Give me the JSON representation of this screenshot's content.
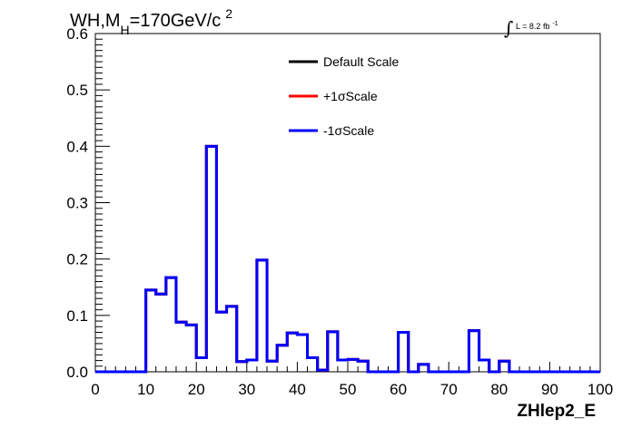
{
  "chart_data": {
    "type": "histogram",
    "title_parts": {
      "main": "WH,M",
      "sub": "H",
      "rest": "=170GeV/c",
      "sup": "2"
    },
    "lumi": {
      "symbol": "∫",
      "text": "L = 8.2 fb",
      "sup": "-1"
    },
    "xlabel": "ZHlep2_E",
    "ylabel": "",
    "xlim": [
      0,
      100
    ],
    "ylim": [
      0,
      0.6
    ],
    "x_ticks": [
      "0",
      "10",
      "20",
      "30",
      "40",
      "50",
      "60",
      "70",
      "80",
      "90",
      "100"
    ],
    "y_ticks": [
      "0.0",
      "0.1",
      "0.2",
      "0.3",
      "0.4",
      "0.5",
      "0.6"
    ],
    "bin_edges_start": 0,
    "bin_width": 2,
    "legend_position": "top-center",
    "series": [
      {
        "name": "Default Scale",
        "color": "#000000",
        "values": [
          0,
          0,
          0,
          0,
          0,
          0.145,
          0.138,
          0.167,
          0.088,
          0.083,
          0.025,
          0.4,
          0.106,
          0.116,
          0.018,
          0.021,
          0.198,
          0.019,
          0.047,
          0.069,
          0.066,
          0.025,
          0.003,
          0.071,
          0.021,
          0.022,
          0.019,
          0,
          0,
          0,
          0.07,
          0,
          0.013,
          0,
          0,
          0,
          0,
          0.073,
          0.021,
          0,
          0.019,
          0,
          0,
          0,
          0,
          0,
          0,
          0,
          0,
          0
        ]
      },
      {
        "name": "+1σScale",
        "color": "#ff0000",
        "values": [
          0,
          0,
          0,
          0,
          0,
          0.145,
          0.138,
          0.167,
          0.088,
          0.083,
          0.025,
          0.4,
          0.106,
          0.116,
          0.018,
          0.021,
          0.198,
          0.019,
          0.047,
          0.069,
          0.066,
          0.025,
          0.003,
          0.071,
          0.021,
          0.022,
          0.019,
          0,
          0,
          0,
          0.07,
          0,
          0.013,
          0,
          0,
          0,
          0,
          0.073,
          0.021,
          0,
          0.019,
          0,
          0,
          0,
          0,
          0,
          0,
          0,
          0,
          0
        ]
      },
      {
        "name": "-1σScale",
        "color": "#0000ff",
        "values": [
          0,
          0,
          0,
          0,
          0,
          0.145,
          0.138,
          0.167,
          0.088,
          0.083,
          0.025,
          0.4,
          0.106,
          0.116,
          0.018,
          0.021,
          0.198,
          0.019,
          0.047,
          0.069,
          0.066,
          0.025,
          0.003,
          0.071,
          0.021,
          0.022,
          0.019,
          0,
          0,
          0,
          0.07,
          0,
          0.013,
          0,
          0,
          0,
          0,
          0.073,
          0.021,
          0,
          0.019,
          0,
          0,
          0,
          0,
          0,
          0,
          0,
          0,
          0
        ]
      }
    ]
  }
}
